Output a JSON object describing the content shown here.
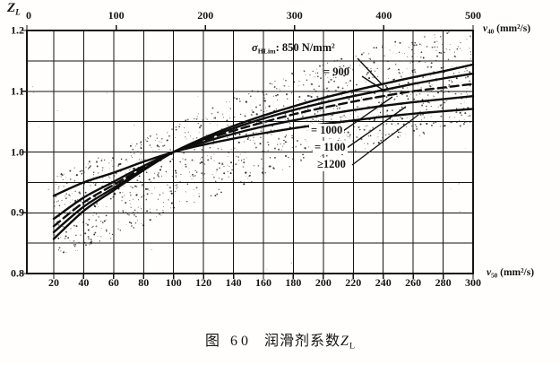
{
  "colors": {
    "ink": "#141414",
    "paper": "#fffefd",
    "curve": "#0d0d0d",
    "stipple": "#2a2a2a"
  },
  "axis": {
    "y_title": {
      "symbol": "Z",
      "sub": "L"
    },
    "top_unit": {
      "symbol": "ν",
      "sub": "40",
      "unit": "(mm²/s)"
    },
    "bottom_unit": {
      "symbol": "ν",
      "sub": "50",
      "unit": "(mm²/s)"
    }
  },
  "annotations": {
    "sigma": {
      "symbol": "σ",
      "sub": "HLim",
      "rest": ": 850 N/mm²"
    },
    "s900": "= 900",
    "s1000": "= 1000",
    "s1100": "= 1100",
    "s1200": "≥1200"
  },
  "caption": {
    "figure_no": "图 60",
    "title": "润滑剂系数",
    "symbol": "Z",
    "sub": "L"
  },
  "chart_data": {
    "type": "line",
    "title": "图 60 润滑剂系数 ZL (Figure 60: Lubricant factor ZL)",
    "x_top": {
      "label": "ν40 (mm²/s)",
      "range": [
        0,
        500
      ],
      "ticks": [
        0,
        100,
        200,
        300,
        400,
        500
      ]
    },
    "x_bottom": {
      "label": "ν50 (mm²/s)",
      "range": [
        20,
        300
      ],
      "grid_step": 20,
      "ticks": [
        20,
        40,
        60,
        80,
        100,
        120,
        140,
        160,
        180,
        200,
        220,
        240,
        260,
        280,
        300
      ]
    },
    "y": {
      "label": "ZL",
      "range": [
        0.8,
        1.2
      ],
      "grid_step": 0.05,
      "ticks": [
        1.2,
        1.1,
        1.0,
        0.9,
        0.8
      ],
      "tick_labels": [
        "1.2",
        "1.1",
        "1.0",
        "0.9",
        "0.8"
      ]
    },
    "grid": true,
    "x": [
      20,
      40,
      60,
      80,
      100,
      120,
      140,
      160,
      180,
      200,
      220,
      240,
      260,
      280,
      300
    ],
    "series": [
      {
        "name": "σHLim = 850 N/mm²",
        "style": "solid",
        "y": [
          0.857,
          0.903,
          0.937,
          0.97,
          1.0,
          1.023,
          1.043,
          1.06,
          1.075,
          1.089,
          1.101,
          1.112,
          1.123,
          1.133,
          1.144
        ]
      },
      {
        "name": "σHLim = 900",
        "style": "solid",
        "y": [
          0.868,
          0.91,
          0.941,
          0.972,
          1.0,
          1.021,
          1.039,
          1.055,
          1.069,
          1.081,
          1.092,
          1.102,
          1.112,
          1.121,
          1.129
        ]
      },
      {
        "name": "σHLim = 1000",
        "style": "dashed",
        "y": [
          0.878,
          0.917,
          0.946,
          0.974,
          1.0,
          1.019,
          1.035,
          1.049,
          1.062,
          1.073,
          1.083,
          1.092,
          1.1,
          1.106,
          1.112
        ]
      },
      {
        "name": "σHLim = 1100",
        "style": "solid",
        "y": [
          0.89,
          0.925,
          0.951,
          0.977,
          1.0,
          1.016,
          1.03,
          1.042,
          1.052,
          1.061,
          1.069,
          1.076,
          1.082,
          1.087,
          1.092
        ]
      },
      {
        "name": "σHLim ≥ 1200",
        "style": "solid",
        "y": [
          0.928,
          0.95,
          0.966,
          0.984,
          1.0,
          1.012,
          1.022,
          1.031,
          1.039,
          1.046,
          1.052,
          1.058,
          1.063,
          1.067,
          1.071
        ]
      }
    ],
    "scatter_band": {
      "comment": "stippled usage band surrounding the curve family",
      "x": [
        20,
        60,
        100,
        140,
        180,
        220,
        260,
        300
      ],
      "top": [
        0.96,
        1.0,
        1.045,
        1.09,
        1.13,
        1.165,
        1.19,
        1.21
      ],
      "bottom": [
        0.82,
        0.86,
        0.9,
        0.94,
        0.975,
        1.0,
        1.025,
        1.045
      ]
    }
  }
}
